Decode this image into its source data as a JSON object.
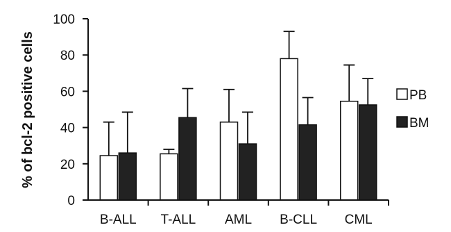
{
  "chart_data": {
    "type": "bar",
    "title": "",
    "xlabel": "",
    "ylabel": "% of bcl-2 positive cells",
    "categories": [
      "B-ALL",
      "T-ALL",
      "AML",
      "B-CLL",
      "CML"
    ],
    "ylim": [
      0,
      100
    ],
    "yticks": [
      0,
      20,
      40,
      60,
      80,
      100
    ],
    "grid": false,
    "legend_position": "right",
    "error_bars": "upper only",
    "series": [
      {
        "name": "PB",
        "color": "#ffffff",
        "values": [
          24.5,
          25.5,
          43,
          78,
          54.5
        ],
        "errors_upper": [
          18.5,
          2.5,
          18,
          15,
          20
        ]
      },
      {
        "name": "BM",
        "color": "#222222",
        "values": [
          26,
          45.5,
          31,
          41.5,
          52.5
        ],
        "errors_upper": [
          22.5,
          16,
          17.5,
          15,
          14.5
        ]
      }
    ]
  }
}
